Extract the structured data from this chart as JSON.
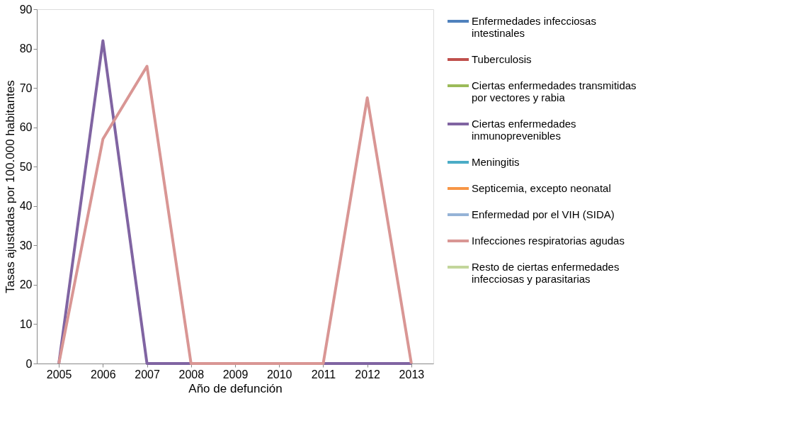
{
  "chart_data": {
    "type": "line",
    "xlabel": "Año de defunción",
    "ylabel": "Tasas ajustadas por 100.000 habitantes",
    "categories": [
      "2005",
      "2006",
      "2007",
      "2008",
      "2009",
      "2010",
      "2011",
      "2012",
      "2013"
    ],
    "ylim": [
      0,
      90
    ],
    "yticks": [
      0,
      10,
      20,
      30,
      40,
      50,
      60,
      70,
      80,
      90
    ],
    "grid": false,
    "legend": "right",
    "marker": "none",
    "line_style": "solid",
    "series": [
      {
        "name": "Enfermedades infecciosas intestinales",
        "color": "#4f81bd",
        "values": [
          null,
          null,
          null,
          null,
          null,
          null,
          null,
          null,
          null
        ]
      },
      {
        "name": "Tuberculosis",
        "color": "#c0504d",
        "values": [
          null,
          null,
          null,
          null,
          null,
          null,
          null,
          null,
          null
        ]
      },
      {
        "name": "Ciertas enfermedades transmitidas por vectores y rabia",
        "color": "#9bbb59",
        "values": [
          null,
          null,
          null,
          null,
          null,
          null,
          null,
          null,
          null
        ]
      },
      {
        "name": "Ciertas enfermedades inmunoprevenibles",
        "color": "#8064a2",
        "values": [
          0,
          82,
          0,
          0,
          0,
          0,
          0,
          0,
          0
        ]
      },
      {
        "name": "Meningitis",
        "color": "#4bacc6",
        "values": [
          null,
          null,
          null,
          null,
          null,
          null,
          null,
          null,
          null
        ]
      },
      {
        "name": "Septicemia, excepto neonatal",
        "color": "#f79646",
        "values": [
          null,
          null,
          null,
          null,
          null,
          null,
          null,
          null,
          null
        ]
      },
      {
        "name": "Enfermedad por el VIH (SIDA)",
        "color": "#95b3d7",
        "values": [
          null,
          null,
          null,
          null,
          null,
          null,
          null,
          null,
          null
        ]
      },
      {
        "name": "Infecciones respiratorias agudas",
        "color": "#d99694",
        "values": [
          0,
          57,
          75.5,
          0,
          0,
          0,
          0,
          67.5,
          0
        ]
      },
      {
        "name": "Resto de ciertas enfermedades infecciosas y parasitarias",
        "color": "#c3d69b",
        "values": [
          null,
          null,
          null,
          null,
          null,
          null,
          null,
          null,
          null
        ]
      }
    ]
  }
}
